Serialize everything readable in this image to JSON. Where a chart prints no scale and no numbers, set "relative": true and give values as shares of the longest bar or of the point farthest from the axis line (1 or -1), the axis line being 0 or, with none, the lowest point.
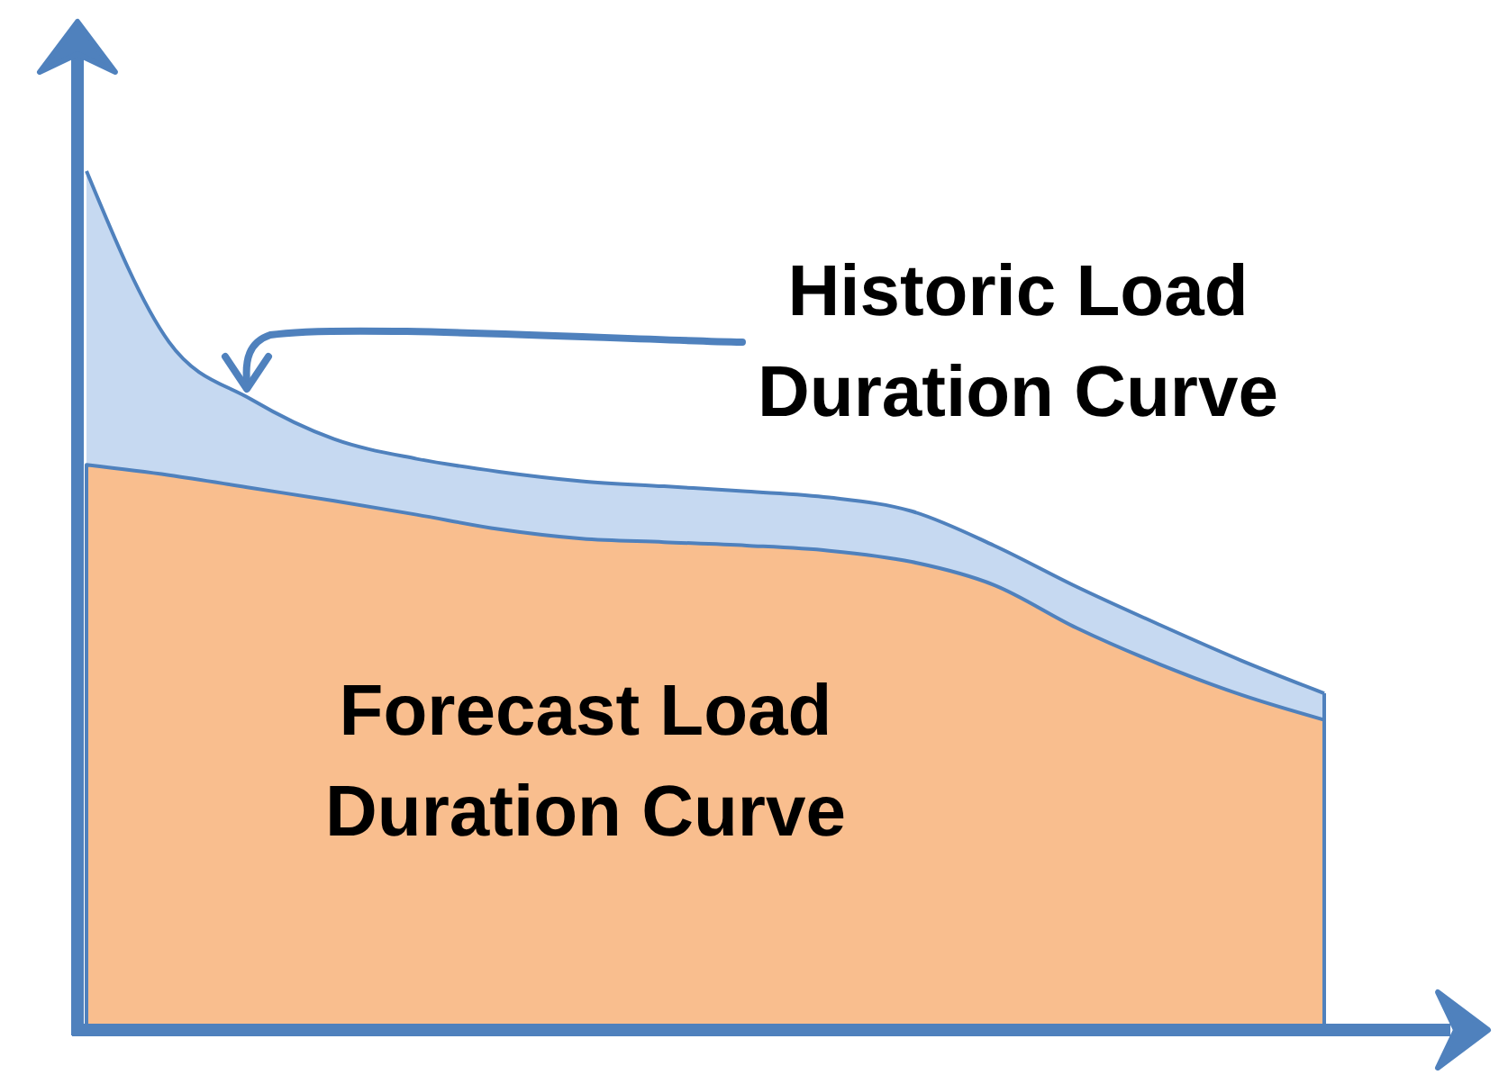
{
  "chart_data": {
    "type": "area",
    "relative": true,
    "categories": [
      null,
      null,
      null,
      null,
      null,
      null,
      null,
      null,
      null,
      null,
      null,
      null,
      null,
      null,
      null,
      null
    ],
    "series": [
      {
        "name": "Historic Load Duration Curve",
        "color": "#c6d9f1",
        "values": [
          1,
          0.801,
          0.734,
          0.688,
          0.665,
          0.65,
          0.639,
          0.633,
          0.627,
          0.62,
          0.604,
          0.564,
          0.516,
          0.472,
          0.43,
          0.392
        ]
      },
      {
        "name": "Forecast Load Duration Curve",
        "color": "#f9be8e",
        "values": [
          0.658,
          0.646,
          0.631,
          0.616,
          0.6,
          0.583,
          0.572,
          0.568,
          0.564,
          0.558,
          0.545,
          0.518,
          0.468,
          0.426,
          0.39,
          0.361
        ]
      }
    ]
  }
}
